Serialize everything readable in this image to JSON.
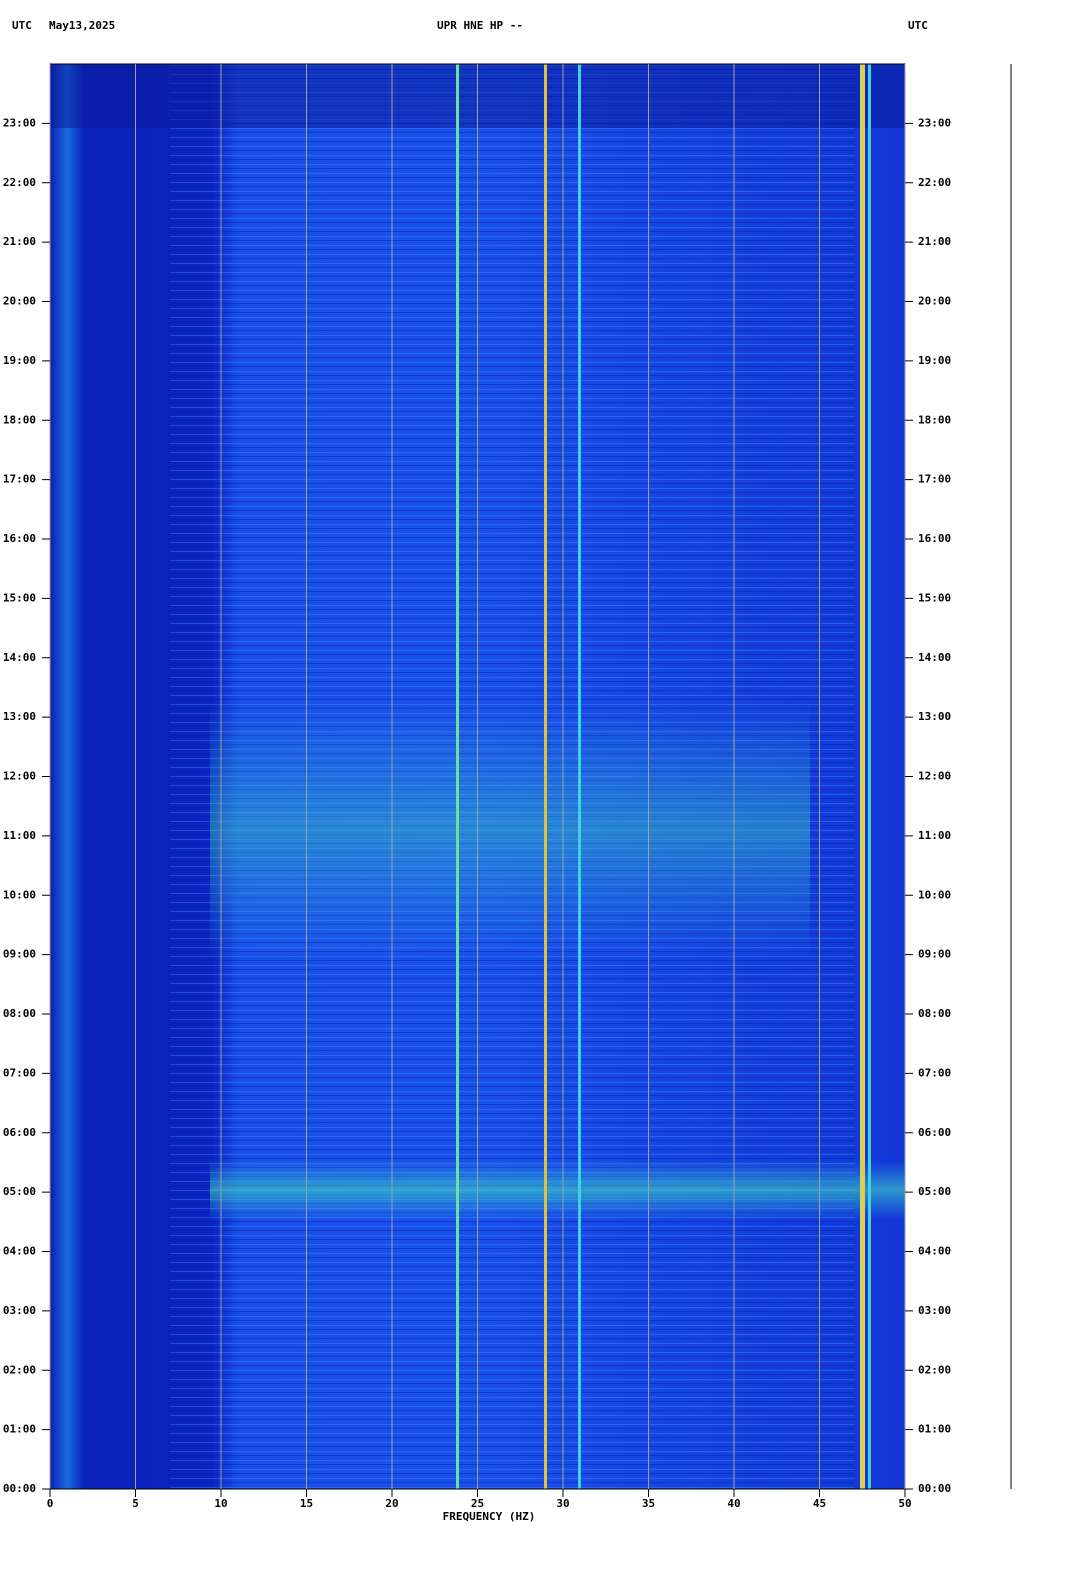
{
  "chart_data": {
    "type": "heatmap",
    "left_label": "UTC",
    "date": "May13,2025",
    "title": "UPR HNE HP --",
    "right_label": "UTC",
    "xlabel": "FREQUENCY (HZ)",
    "xlim": [
      0,
      50
    ],
    "xticks": [
      0,
      5,
      10,
      15,
      20,
      25,
      30,
      35,
      40,
      45,
      50
    ],
    "ylim": [
      0,
      24
    ],
    "yticks": [
      {
        "value": 0,
        "label": "00:00"
      },
      {
        "value": 1,
        "label": "01:00"
      },
      {
        "value": 2,
        "label": "02:00"
      },
      {
        "value": 3,
        "label": "03:00"
      },
      {
        "value": 4,
        "label": "04:00"
      },
      {
        "value": 5,
        "label": "05:00"
      },
      {
        "value": 6,
        "label": "06:00"
      },
      {
        "value": 7,
        "label": "07:00"
      },
      {
        "value": 8,
        "label": "08:00"
      },
      {
        "value": 9,
        "label": "09:00"
      },
      {
        "value": 10,
        "label": "10:00"
      },
      {
        "value": 11,
        "label": "11:00"
      },
      {
        "value": 12,
        "label": "12:00"
      },
      {
        "value": 13,
        "label": "13:00"
      },
      {
        "value": 14,
        "label": "14:00"
      },
      {
        "value": 15,
        "label": "15:00"
      },
      {
        "value": 16,
        "label": "16:00"
      },
      {
        "value": 17,
        "label": "17:00"
      },
      {
        "value": 18,
        "label": "18:00"
      },
      {
        "value": 19,
        "label": "19:00"
      },
      {
        "value": 20,
        "label": "20:00"
      },
      {
        "value": 21,
        "label": "21:00"
      },
      {
        "value": 22,
        "label": "22:00"
      },
      {
        "value": 23,
        "label": "23:00"
      }
    ],
    "grid": true
  }
}
